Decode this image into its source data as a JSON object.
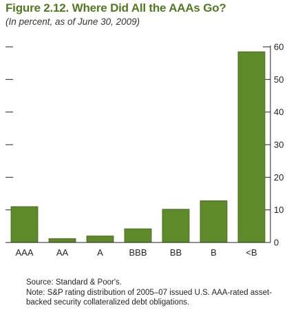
{
  "title": "Figure 2.12. Where Did All the AAAs Go?",
  "subtitle": "(In percent, as of June 30, 2009)",
  "source": "Source: Standard & Poor's.",
  "note": "Note: S&P rating distribution of 2005–07 issued U.S. AAA-rated asset-backed security collateralized debt obligations.",
  "colors": {
    "bar": "#5e8a2a",
    "bar_edge": "#3f6215",
    "title": "#4f7a1f"
  },
  "chart_data": {
    "type": "bar",
    "categories": [
      "AAA",
      "AA",
      "A",
      "BBB",
      "BB",
      "B",
      "<B"
    ],
    "values": [
      11,
      1.2,
      2,
      4.2,
      10.2,
      12.8,
      58.5
    ],
    "yticks": [
      0,
      10,
      20,
      30,
      40,
      50,
      60
    ],
    "ylim": [
      0,
      60
    ],
    "xlabel": "",
    "ylabel": "",
    "grid": false,
    "legend": "none"
  }
}
